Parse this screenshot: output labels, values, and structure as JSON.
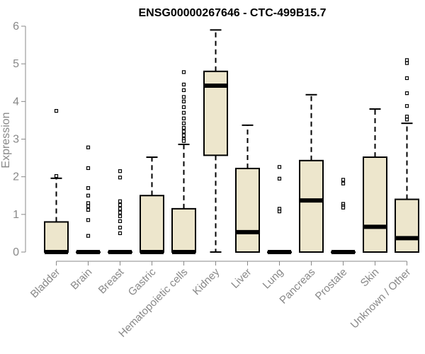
{
  "chart_data": {
    "type": "box",
    "title": "ENSG00000267646 - CTC-499B15.7",
    "xlabel": "",
    "ylabel": "Expression",
    "ylim": [
      0,
      6
    ],
    "yticks": [
      0,
      1,
      2,
      3,
      4,
      5,
      6
    ],
    "grid": false,
    "colors": {
      "box_fill": "#ede6cc",
      "box_stroke": "#000000",
      "axis": "#888888"
    },
    "categories": [
      "Bladder",
      "Brain",
      "Breast",
      "Gastric",
      "Hematopoietic cells",
      "Kidney",
      "Liver",
      "Lung",
      "Pancreas",
      "Prostate",
      "Skin",
      "Unknown / Other"
    ],
    "boxes": [
      {
        "q1": 0,
        "median": 0,
        "q3": 0.8,
        "whisker_low": 0,
        "whisker_high": 1.96,
        "outliers": [
          3.75,
          2.02
        ]
      },
      {
        "q1": 0,
        "median": 0,
        "q3": 0,
        "whisker_low": 0,
        "whisker_high": 0,
        "outliers": [
          2.78,
          2.23,
          1.7,
          1.5,
          1.3,
          1.22,
          1.12,
          0.85,
          0.43
        ]
      },
      {
        "q1": 0,
        "median": 0,
        "q3": 0,
        "whisker_low": 0,
        "whisker_high": 0,
        "outliers": [
          2.15,
          1.98,
          1.35,
          1.25,
          1.15,
          1.05,
          0.95,
          0.82,
          0.65,
          0.5
        ]
      },
      {
        "q1": 0,
        "median": 0,
        "q3": 1.5,
        "whisker_low": 0,
        "whisker_high": 2.52,
        "outliers": []
      },
      {
        "q1": 0,
        "median": 0,
        "q3": 1.15,
        "whisker_low": 0,
        "whisker_high": 2.86,
        "outliers": [
          4.78,
          4.45,
          4.3,
          4.12,
          4.0,
          3.85,
          3.7,
          3.55,
          3.42,
          3.3,
          3.2,
          3.1,
          3.0,
          2.95
        ]
      },
      {
        "q1": 2.57,
        "median": 4.42,
        "q3": 4.8,
        "whisker_low": 0,
        "whisker_high": 5.9,
        "outliers": []
      },
      {
        "q1": 0,
        "median": 0.53,
        "q3": 2.22,
        "whisker_low": 0,
        "whisker_high": 3.37,
        "outliers": []
      },
      {
        "q1": 0,
        "median": 0,
        "q3": 0,
        "whisker_low": 0,
        "whisker_high": 0,
        "outliers": [
          2.26,
          1.95,
          1.15,
          1.08
        ]
      },
      {
        "q1": 0,
        "median": 1.37,
        "q3": 2.43,
        "whisker_low": 0,
        "whisker_high": 4.18,
        "outliers": []
      },
      {
        "q1": 0,
        "median": 0,
        "q3": 0,
        "whisker_low": 0,
        "whisker_high": 0,
        "outliers": [
          1.92,
          1.82,
          1.28,
          1.22,
          1.18
        ]
      },
      {
        "q1": 0,
        "median": 0.67,
        "q3": 2.52,
        "whisker_low": 0,
        "whisker_high": 3.8,
        "outliers": []
      },
      {
        "q1": 0,
        "median": 0.37,
        "q3": 1.4,
        "whisker_low": 0,
        "whisker_high": 3.42,
        "outliers": [
          5.1,
          5.02,
          4.62,
          4.22,
          3.88,
          3.6,
          3.52
        ]
      }
    ]
  }
}
